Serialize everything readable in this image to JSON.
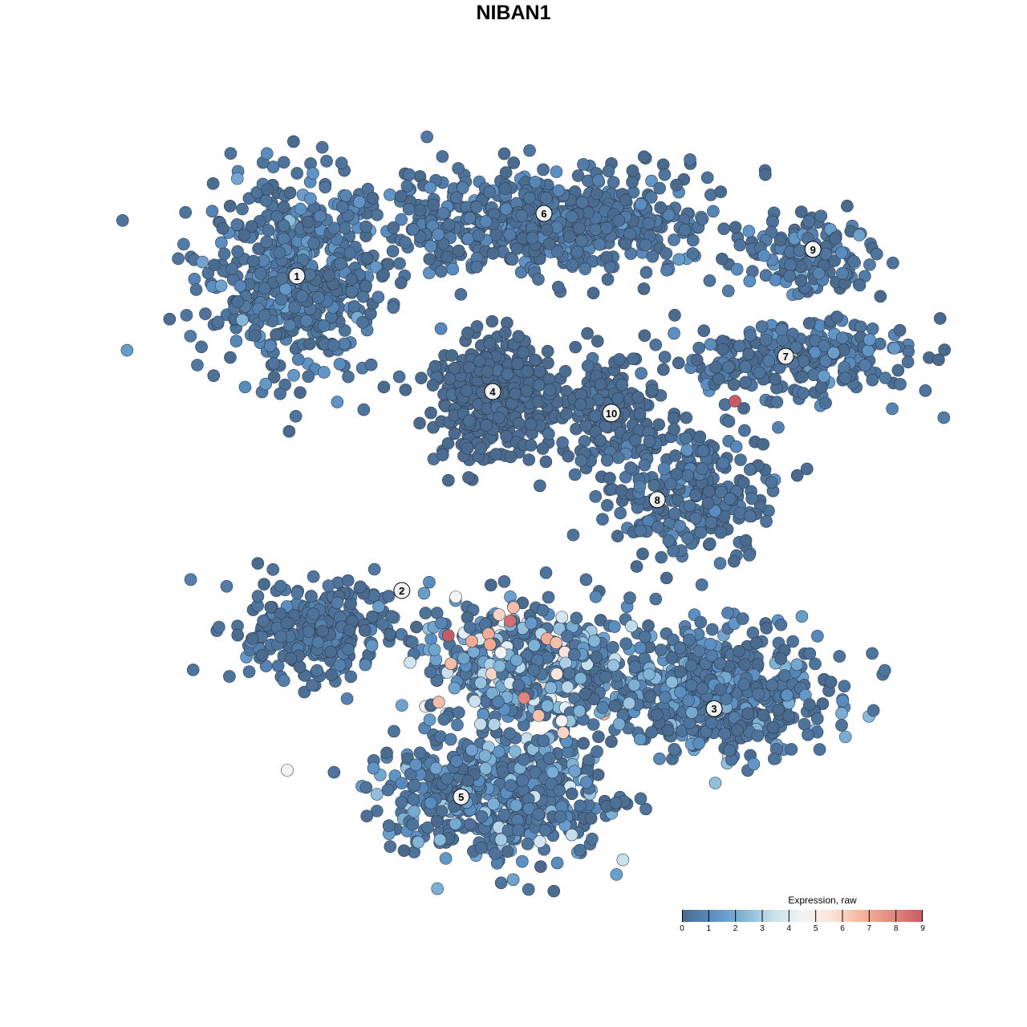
{
  "chart_data": {
    "type": "scatter",
    "title": "NIBAN1",
    "xlabel": "",
    "ylabel": "",
    "grid": false,
    "axes_visible": false,
    "xlim": [
      -16,
      16
    ],
    "ylim": [
      -16,
      16
    ],
    "legend": {
      "title": "Expression, raw",
      "position": "bottom-right",
      "range": [
        0,
        9
      ],
      "ticks": [
        "0",
        "1",
        "2",
        "3",
        "4",
        "5",
        "6",
        "7",
        "8",
        "9"
      ],
      "colors": [
        "#4a6a8e",
        "#5b8fc2",
        "#7fb3d5",
        "#c6dfec",
        "#f2f4f6",
        "#fbe3d7",
        "#f5b49c",
        "#e08a7c",
        "#c85a66"
      ]
    },
    "clusters": [
      {
        "label": "1",
        "x": -6.75,
        "y": 7.4,
        "sx": 2.6,
        "sy": 2.5,
        "n": 520,
        "mean_expr": 0.9
      },
      {
        "label": "6",
        "x": 1.0,
        "y": 9.1,
        "sx": 4.6,
        "sy": 1.4,
        "n": 620,
        "mean_expr": 0.7
      },
      {
        "label": "4",
        "x": -0.6,
        "y": 3.6,
        "sx": 1.5,
        "sy": 1.6,
        "n": 380,
        "mean_expr": 0.2
      },
      {
        "label": "10",
        "x": 3.0,
        "y": 3.2,
        "sx": 1.6,
        "sy": 1.4,
        "n": 160,
        "mean_expr": 0.3
      },
      {
        "label": "9",
        "x": 9.3,
        "y": 8.0,
        "sx": 1.8,
        "sy": 0.9,
        "n": 140,
        "mean_expr": 0.9
      },
      {
        "label": "7",
        "x": 8.8,
        "y": 4.8,
        "sx": 3.0,
        "sy": 1.0,
        "n": 260,
        "mean_expr": 0.7
      },
      {
        "label": "8",
        "x": 5.6,
        "y": 0.6,
        "sx": 2.2,
        "sy": 1.6,
        "n": 260,
        "mean_expr": 0.6
      },
      {
        "label": "2",
        "x": -6.0,
        "y": -3.7,
        "sx": 2.0,
        "sy": 1.3,
        "n": 280,
        "mean_expr": 0.6
      },
      {
        "label": "5",
        "x": -0.6,
        "y": -8.8,
        "sx": 2.8,
        "sy": 1.6,
        "n": 560,
        "mean_expr": 1.5
      },
      {
        "label": "3",
        "x": 6.5,
        "y": -5.6,
        "sx": 2.8,
        "sy": 1.6,
        "n": 520,
        "mean_expr": 1.2
      },
      {
        "label": "",
        "x": 0.5,
        "y": -4.8,
        "sx": 2.6,
        "sy": 1.8,
        "n": 480,
        "mean_expr": 2.2
      }
    ],
    "label_positions": [
      {
        "label": "1",
        "x": -6.75,
        "y": 7.4
      },
      {
        "label": "6",
        "x": 0.95,
        "y": 9.35
      },
      {
        "label": "4",
        "x": -0.65,
        "y": 3.8
      },
      {
        "label": "10",
        "x": 3.05,
        "y": 3.13
      },
      {
        "label": "9",
        "x": 9.33,
        "y": 8.23
      },
      {
        "label": "7",
        "x": 8.48,
        "y": 4.9
      },
      {
        "label": "8",
        "x": 4.48,
        "y": 0.43
      },
      {
        "label": "2",
        "x": -3.48,
        "y": -2.4
      },
      {
        "label": "5",
        "x": -1.63,
        "y": -8.83
      },
      {
        "label": "3",
        "x": 6.25,
        "y": -6.08
      }
    ],
    "high_points": [
      {
        "x": -2.03,
        "y": -3.8,
        "value": 9
      },
      {
        "x": 6.9,
        "y": 3.5,
        "value": 9
      },
      {
        "x": -0.1,
        "y": -3.35,
        "value": 8.5
      },
      {
        "x": 0.33,
        "y": -5.75,
        "value": 8
      },
      {
        "x": -0.78,
        "y": -3.75,
        "value": 7
      },
      {
        "x": -1.3,
        "y": -3.98,
        "value": 7
      },
      {
        "x": -0.73,
        "y": -4.08,
        "value": 7
      },
      {
        "x": 1.05,
        "y": -3.9,
        "value": 7
      },
      {
        "x": 1.33,
        "y": -4.03,
        "value": 6.5
      },
      {
        "x": 0.0,
        "y": -2.93,
        "value": 6.5
      },
      {
        "x": -1.95,
        "y": -4.68,
        "value": 6.5
      },
      {
        "x": -2.33,
        "y": -5.88,
        "value": 6.5
      },
      {
        "x": 0.78,
        "y": -6.3,
        "value": 6.5
      },
      {
        "x": -0.45,
        "y": -3.15,
        "value": 6
      },
      {
        "x": 1.55,
        "y": -6.83,
        "value": 6
      },
      {
        "x": 1.35,
        "y": -5.0,
        "value": 5.5
      },
      {
        "x": -1.8,
        "y": -2.6,
        "value": 4.5
      },
      {
        "x": -7.05,
        "y": -8.0,
        "value": 4.5
      }
    ]
  }
}
